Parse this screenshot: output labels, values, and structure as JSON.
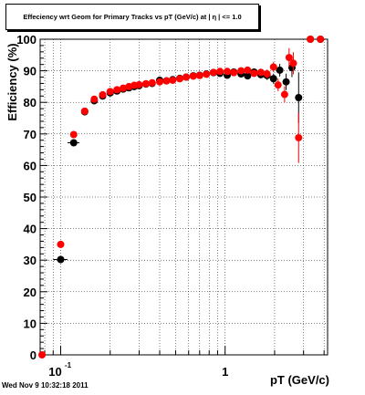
{
  "title": "Effeciency wrt Geom for Primary Tracks vs pT (GeV/c) at | η | <= 1.0",
  "footer": "Wed Nov  9 10:32:18 2011",
  "chart_data": {
    "type": "scatter",
    "title": "Effeciency wrt Geom for Primary Tracks vs pT (GeV/c) at | η | <= 1.0",
    "xlabel": "pT (GeV/c)",
    "ylabel": "Efficiency (%)",
    "xscale": "log",
    "xlim": [
      0.075,
      4.2
    ],
    "ylim": [
      0,
      100
    ],
    "grid": true,
    "x_tick_labels": [
      {
        "x": 0.1,
        "base": "10",
        "exp": "-1"
      },
      {
        "x": 1,
        "base": "1",
        "exp": ""
      }
    ],
    "y_ticks": [
      0,
      10,
      20,
      30,
      40,
      50,
      60,
      70,
      80,
      90,
      100
    ],
    "series": [
      {
        "color": "#000000",
        "marker": "circle",
        "points": [
          {
            "x": 0.1,
            "y": 30.2,
            "xerr": 0.01,
            "yerr": 0.6
          },
          {
            "x": 0.12,
            "y": 67.2,
            "xerr": 0.01,
            "yerr": 0.6
          },
          {
            "x": 0.14,
            "y": 77.0,
            "xerr": 0.005,
            "yerr": 0.5
          },
          {
            "x": 0.16,
            "y": 80.5,
            "xerr": 0.005,
            "yerr": 0.5
          },
          {
            "x": 0.18,
            "y": 82.0,
            "xerr": 0.005,
            "yerr": 0.5
          },
          {
            "x": 0.2,
            "y": 83.0,
            "xerr": 0.005,
            "yerr": 0.5
          },
          {
            "x": 0.22,
            "y": 83.6,
            "xerr": 0.005,
            "yerr": 0.5
          },
          {
            "x": 0.24,
            "y": 84.2,
            "xerr": 0.005,
            "yerr": 0.5
          },
          {
            "x": 0.26,
            "y": 84.6,
            "xerr": 0.005,
            "yerr": 0.5
          },
          {
            "x": 0.28,
            "y": 85.0,
            "xerr": 0.005,
            "yerr": 0.5
          },
          {
            "x": 0.3,
            "y": 85.3,
            "xerr": 0.005,
            "yerr": 0.5
          },
          {
            "x": 0.33,
            "y": 85.8,
            "xerr": 0.01,
            "yerr": 0.5
          },
          {
            "x": 0.36,
            "y": 86.0,
            "xerr": 0.01,
            "yerr": 0.5
          },
          {
            "x": 0.4,
            "y": 87.0,
            "xerr": 0.01,
            "yerr": 0.5
          },
          {
            "x": 0.44,
            "y": 86.8,
            "xerr": 0.01,
            "yerr": 0.5
          },
          {
            "x": 0.48,
            "y": 87.2,
            "xerr": 0.01,
            "yerr": 0.5
          },
          {
            "x": 0.53,
            "y": 87.6,
            "xerr": 0.01,
            "yerr": 0.5
          },
          {
            "x": 0.58,
            "y": 88.0,
            "xerr": 0.01,
            "yerr": 0.5
          },
          {
            "x": 0.64,
            "y": 88.4,
            "xerr": 0.01,
            "yerr": 0.5
          },
          {
            "x": 0.7,
            "y": 88.6,
            "xerr": 0.01,
            "yerr": 0.5
          },
          {
            "x": 0.77,
            "y": 89.0,
            "xerr": 0.02,
            "yerr": 0.6
          },
          {
            "x": 0.85,
            "y": 89.4,
            "xerr": 0.02,
            "yerr": 0.6
          },
          {
            "x": 0.93,
            "y": 89.2,
            "xerr": 0.02,
            "yerr": 0.7
          },
          {
            "x": 1.03,
            "y": 88.6,
            "xerr": 0.02,
            "yerr": 0.8
          },
          {
            "x": 1.13,
            "y": 89.6,
            "xerr": 0.02,
            "yerr": 0.8
          },
          {
            "x": 1.25,
            "y": 89.0,
            "xerr": 0.03,
            "yerr": 0.9
          },
          {
            "x": 1.37,
            "y": 88.4,
            "xerr": 0.03,
            "yerr": 1.0
          },
          {
            "x": 1.5,
            "y": 89.6,
            "xerr": 0.03,
            "yerr": 1.1
          },
          {
            "x": 1.65,
            "y": 88.8,
            "xerr": 0.03,
            "yerr": 1.2
          },
          {
            "x": 1.8,
            "y": 88.5,
            "xerr": 0.04,
            "yerr": 1.4
          },
          {
            "x": 1.97,
            "y": 87.5,
            "xerr": 0.04,
            "yerr": 1.6
          },
          {
            "x": 2.15,
            "y": 90.2,
            "xerr": 0.05,
            "yerr": 2.0
          },
          {
            "x": 2.35,
            "y": 86.5,
            "xerr": 0.05,
            "yerr": 2.6
          },
          {
            "x": 2.55,
            "y": 91.0,
            "xerr": 0.05,
            "yerr": 3.0
          },
          {
            "x": 2.8,
            "y": 81.5,
            "xerr": 0.1,
            "yerr": 8.0
          },
          {
            "x": 3.3,
            "y": 100,
            "xerr": 0.1,
            "yerr": 0.5
          },
          {
            "x": 3.8,
            "y": 100,
            "xerr": 0.1,
            "yerr": 0.5
          }
        ]
      },
      {
        "color": "#ff0000",
        "marker": "circle",
        "points": [
          {
            "x": 0.077,
            "y": 0.0,
            "xerr": 0.003,
            "yerr": 0.3
          },
          {
            "x": 0.1,
            "y": 35.0,
            "xerr": 0.005,
            "yerr": 0.6
          },
          {
            "x": 0.12,
            "y": 69.8,
            "xerr": 0.005,
            "yerr": 0.6
          },
          {
            "x": 0.14,
            "y": 77.2,
            "xerr": 0.005,
            "yerr": 0.5
          },
          {
            "x": 0.16,
            "y": 81.0,
            "xerr": 0.005,
            "yerr": 0.5
          },
          {
            "x": 0.18,
            "y": 82.4,
            "xerr": 0.005,
            "yerr": 0.5
          },
          {
            "x": 0.2,
            "y": 83.4,
            "xerr": 0.005,
            "yerr": 0.5
          },
          {
            "x": 0.22,
            "y": 84.0,
            "xerr": 0.005,
            "yerr": 0.5
          },
          {
            "x": 0.24,
            "y": 84.5,
            "xerr": 0.005,
            "yerr": 0.5
          },
          {
            "x": 0.26,
            "y": 85.0,
            "xerr": 0.005,
            "yerr": 0.5
          },
          {
            "x": 0.28,
            "y": 85.4,
            "xerr": 0.005,
            "yerr": 0.5
          },
          {
            "x": 0.3,
            "y": 85.6,
            "xerr": 0.005,
            "yerr": 0.5
          },
          {
            "x": 0.33,
            "y": 85.9,
            "xerr": 0.01,
            "yerr": 0.5
          },
          {
            "x": 0.36,
            "y": 86.2,
            "xerr": 0.01,
            "yerr": 0.5
          },
          {
            "x": 0.4,
            "y": 86.5,
            "xerr": 0.01,
            "yerr": 0.5
          },
          {
            "x": 0.44,
            "y": 86.8,
            "xerr": 0.01,
            "yerr": 0.5
          },
          {
            "x": 0.48,
            "y": 87.0,
            "xerr": 0.01,
            "yerr": 0.5
          },
          {
            "x": 0.53,
            "y": 87.5,
            "xerr": 0.01,
            "yerr": 0.5
          },
          {
            "x": 0.58,
            "y": 88.0,
            "xerr": 0.01,
            "yerr": 0.5
          },
          {
            "x": 0.64,
            "y": 88.3,
            "xerr": 0.01,
            "yerr": 0.5
          },
          {
            "x": 0.7,
            "y": 88.5,
            "xerr": 0.01,
            "yerr": 0.5
          },
          {
            "x": 0.77,
            "y": 88.9,
            "xerr": 0.02,
            "yerr": 0.6
          },
          {
            "x": 0.85,
            "y": 89.5,
            "xerr": 0.02,
            "yerr": 0.6
          },
          {
            "x": 0.93,
            "y": 89.8,
            "xerr": 0.02,
            "yerr": 0.7
          },
          {
            "x": 1.03,
            "y": 89.8,
            "xerr": 0.02,
            "yerr": 0.8
          },
          {
            "x": 1.13,
            "y": 89.4,
            "xerr": 0.02,
            "yerr": 0.8
          },
          {
            "x": 1.25,
            "y": 90.0,
            "xerr": 0.03,
            "yerr": 0.9
          },
          {
            "x": 1.37,
            "y": 90.2,
            "xerr": 0.03,
            "yerr": 1.0
          },
          {
            "x": 1.5,
            "y": 89.2,
            "xerr": 0.03,
            "yerr": 1.1
          },
          {
            "x": 1.65,
            "y": 89.5,
            "xerr": 0.03,
            "yerr": 1.2
          },
          {
            "x": 1.8,
            "y": 89.0,
            "xerr": 0.04,
            "yerr": 1.4
          },
          {
            "x": 1.97,
            "y": 91.2,
            "xerr": 0.04,
            "yerr": 1.6
          },
          {
            "x": 2.1,
            "y": 85.5,
            "xerr": 0.05,
            "yerr": 2.0
          },
          {
            "x": 2.3,
            "y": 82.5,
            "xerr": 0.05,
            "yerr": 2.6
          },
          {
            "x": 2.45,
            "y": 94.2,
            "xerr": 0.05,
            "yerr": 3.0
          },
          {
            "x": 2.6,
            "y": 92.4,
            "xerr": 0.05,
            "yerr": 3.5
          },
          {
            "x": 2.8,
            "y": 68.8,
            "xerr": 0.1,
            "yerr": 8.0
          },
          {
            "x": 3.3,
            "y": 100,
            "xerr": 0.1,
            "yerr": 0.5
          },
          {
            "x": 3.8,
            "y": 100,
            "xerr": 0.1,
            "yerr": 0.5
          }
        ]
      }
    ]
  }
}
